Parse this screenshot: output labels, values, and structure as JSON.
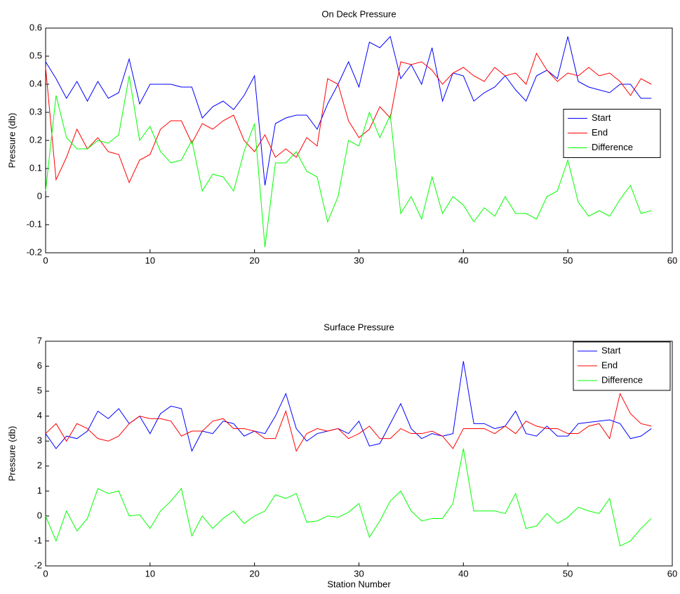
{
  "chart_data": [
    {
      "type": "line",
      "title": "On Deck Pressure",
      "ylabel": "Pressure (db)",
      "x": [
        0,
        1,
        2,
        3,
        4,
        5,
        6,
        7,
        8,
        9,
        10,
        11,
        12,
        13,
        14,
        15,
        16,
        17,
        18,
        19,
        20,
        21,
        22,
        23,
        24,
        25,
        26,
        27,
        28,
        29,
        30,
        31,
        32,
        33,
        34,
        35,
        36,
        37,
        38,
        39,
        40,
        41,
        42,
        43,
        44,
        45,
        46,
        47,
        48,
        49,
        50,
        51,
        52,
        53,
        54,
        55,
        56,
        57,
        58
      ],
      "series": [
        {
          "name": "Start",
          "color": "#0000ff",
          "values": [
            0.48,
            0.42,
            0.35,
            0.41,
            0.34,
            0.41,
            0.35,
            0.37,
            0.49,
            0.33,
            0.4,
            0.4,
            0.4,
            0.39,
            0.39,
            0.28,
            0.32,
            0.34,
            0.31,
            0.36,
            0.43,
            0.04,
            0.26,
            0.28,
            0.29,
            0.29,
            0.24,
            0.33,
            0.4,
            0.48,
            0.39,
            0.55,
            0.53,
            0.57,
            0.42,
            0.47,
            0.4,
            0.53,
            0.34,
            0.44,
            0.43,
            0.34,
            0.37,
            0.39,
            0.43,
            0.38,
            0.34,
            0.43,
            0.45,
            0.42,
            0.57,
            0.41,
            0.39,
            0.38,
            0.37,
            0.4,
            0.4,
            0.35,
            0.35
          ]
        },
        {
          "name": "End",
          "color": "#ff0000",
          "values": [
            0.46,
            0.06,
            0.14,
            0.24,
            0.17,
            0.21,
            0.16,
            0.15,
            0.05,
            0.13,
            0.15,
            0.24,
            0.27,
            0.27,
            0.19,
            0.26,
            0.24,
            0.27,
            0.29,
            0.2,
            0.16,
            0.22,
            0.14,
            0.17,
            0.14,
            0.21,
            0.18,
            0.42,
            0.4,
            0.27,
            0.21,
            0.24,
            0.32,
            0.28,
            0.48,
            0.47,
            0.48,
            0.45,
            0.4,
            0.44,
            0.46,
            0.43,
            0.41,
            0.46,
            0.43,
            0.44,
            0.4,
            0.51,
            0.45,
            0.41,
            0.44,
            0.43,
            0.46,
            0.43,
            0.44,
            0.41,
            0.36,
            0.42,
            0.4
          ]
        },
        {
          "name": "Difference",
          "color": "#00ff00",
          "values": [
            0.02,
            0.36,
            0.21,
            0.17,
            0.17,
            0.2,
            0.19,
            0.22,
            0.43,
            0.2,
            0.25,
            0.16,
            0.12,
            0.13,
            0.2,
            0.02,
            0.08,
            0.07,
            0.02,
            0.16,
            0.26,
            -0.18,
            0.12,
            0.12,
            0.16,
            0.09,
            0.07,
            -0.09,
            0.0,
            0.2,
            0.18,
            0.3,
            0.21,
            0.29,
            -0.06,
            0.0,
            -0.08,
            0.07,
            -0.06,
            0.0,
            -0.03,
            -0.09,
            -0.04,
            -0.07,
            0.0,
            -0.06,
            -0.06,
            -0.08,
            0.0,
            0.02,
            0.13,
            -0.02,
            -0.07,
            -0.05,
            -0.07,
            -0.01,
            0.04,
            -0.06,
            -0.05
          ]
        }
      ],
      "xlim": [
        0,
        60
      ],
      "xticks": [
        0,
        10,
        20,
        30,
        40,
        50,
        60
      ],
      "ylim": [
        -0.2,
        0.6
      ],
      "yticks": [
        -0.2,
        -0.1,
        0,
        0.1,
        0.2,
        0.3,
        0.4,
        0.5,
        0.6
      ],
      "legend": "right"
    },
    {
      "type": "line",
      "title": "Surface Pressure",
      "ylabel": "Pressure (db)",
      "xlabel": "Station Number",
      "x": [
        0,
        1,
        2,
        3,
        4,
        5,
        6,
        7,
        8,
        9,
        10,
        11,
        12,
        13,
        14,
        15,
        16,
        17,
        18,
        19,
        20,
        21,
        22,
        23,
        24,
        25,
        26,
        27,
        28,
        29,
        30,
        31,
        32,
        33,
        34,
        35,
        36,
        37,
        38,
        39,
        40,
        41,
        42,
        43,
        44,
        45,
        46,
        47,
        48,
        49,
        50,
        51,
        52,
        53,
        54,
        55,
        56,
        57,
        58
      ],
      "series": [
        {
          "name": "Start",
          "color": "#0000ff",
          "values": [
            3.3,
            2.7,
            3.2,
            3.1,
            3.4,
            4.2,
            3.9,
            4.3,
            3.7,
            4.0,
            3.3,
            4.1,
            4.4,
            4.3,
            2.6,
            3.4,
            3.3,
            3.8,
            3.7,
            3.2,
            3.4,
            3.3,
            4.0,
            4.9,
            3.5,
            3.0,
            3.3,
            3.4,
            3.5,
            3.3,
            3.8,
            2.8,
            2.9,
            3.7,
            4.5,
            3.5,
            3.1,
            3.3,
            3.2,
            3.3,
            6.2,
            3.7,
            3.7,
            3.5,
            3.6,
            4.2,
            3.3,
            3.2,
            3.6,
            3.2,
            3.2,
            3.7,
            3.75,
            3.8,
            3.85,
            3.7,
            3.1,
            3.2,
            3.5
          ]
        },
        {
          "name": "End",
          "color": "#ff0000",
          "values": [
            3.3,
            3.7,
            3.0,
            3.7,
            3.5,
            3.1,
            3.0,
            3.2,
            3.7,
            4.0,
            3.9,
            3.9,
            3.8,
            3.2,
            3.4,
            3.4,
            3.8,
            3.9,
            3.5,
            3.5,
            3.4,
            3.1,
            3.1,
            4.2,
            2.6,
            3.3,
            3.5,
            3.4,
            3.5,
            3.1,
            3.3,
            3.6,
            3.1,
            3.1,
            3.5,
            3.3,
            3.3,
            3.4,
            3.2,
            2.7,
            3.5,
            3.5,
            3.5,
            3.3,
            3.6,
            3.3,
            3.8,
            3.6,
            3.5,
            3.5,
            3.3,
            3.3,
            3.6,
            3.7,
            3.1,
            4.9,
            4.1,
            3.7,
            3.6
          ]
        },
        {
          "name": "Difference",
          "color": "#00ff00",
          "values": [
            0.0,
            -1.0,
            0.2,
            -0.6,
            -0.1,
            1.1,
            0.9,
            1.0,
            0.0,
            0.05,
            -0.5,
            0.2,
            0.6,
            1.1,
            -0.8,
            0.0,
            -0.5,
            -0.1,
            0.2,
            -0.3,
            0.0,
            0.2,
            0.85,
            0.7,
            0.9,
            -0.25,
            -0.2,
            0.0,
            -0.05,
            0.15,
            0.5,
            -0.85,
            -0.2,
            0.6,
            1.0,
            0.2,
            -0.2,
            -0.1,
            -0.1,
            0.5,
            2.7,
            0.2,
            0.2,
            0.2,
            0.1,
            0.9,
            -0.5,
            -0.4,
            0.1,
            -0.3,
            -0.05,
            0.35,
            0.2,
            0.1,
            0.7,
            -1.2,
            -1.0,
            -0.5,
            -0.1
          ]
        }
      ],
      "xlim": [
        0,
        60
      ],
      "xticks": [
        0,
        10,
        20,
        30,
        40,
        50,
        60
      ],
      "ylim": [
        -2,
        7
      ],
      "yticks": [
        -2,
        -1,
        0,
        1,
        2,
        3,
        4,
        5,
        6,
        7
      ],
      "legend": "upper right"
    }
  ]
}
